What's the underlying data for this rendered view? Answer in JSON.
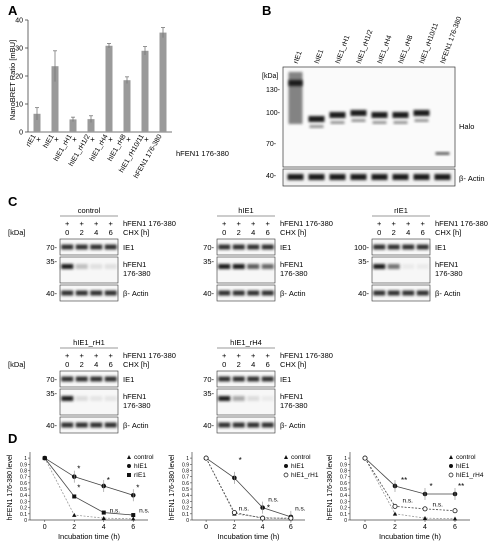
{
  "panels": {
    "A": "A",
    "B": "B",
    "C": "C",
    "D": "D"
  },
  "chart_data": [
    {
      "type": "bar",
      "ylabel": "NanoBRET Ratio [mBU]",
      "ylim": [
        0,
        40
      ],
      "yticks": [
        "0",
        "10",
        "20",
        "30",
        "40"
      ],
      "categories": [
        "rIE1",
        "hIE1",
        "hIE1_rH1",
        "hIE1_rH1/2",
        "hIE1_rH4",
        "hIE1_rH8",
        "hIE1_rH10/11",
        "hFEN1 176-380"
      ],
      "values": [
        6.5,
        23.5,
        4.5,
        4.6,
        30.8,
        18.5,
        29,
        35.5
      ],
      "errors": [
        2.2,
        5.5,
        0.8,
        1.2,
        0.8,
        1.2,
        1.5,
        1.8
      ],
      "plus_signs": [
        "+",
        "+",
        "+",
        "+",
        "+",
        "+",
        "+",
        ""
      ],
      "row_label": "hFEN1 176-380"
    },
    {
      "type": "line",
      "ylabel": "hFEN1 176-380 level",
      "xlabel": "Incubation time (h)",
      "x": [
        0,
        2,
        4,
        6
      ],
      "xlim": [
        -1,
        7
      ],
      "ylim": [
        0,
        1.05
      ],
      "yticks": [
        "0",
        "0.1",
        "0.2",
        "0.3",
        "0.4",
        "0.5",
        "0.6",
        "0.7",
        "0.8",
        "0.9",
        "1"
      ],
      "xticks": [
        "0",
        "2",
        "4",
        "6"
      ],
      "series": [
        {
          "name": "control",
          "values": [
            1,
            0.08,
            0.03,
            0.02
          ],
          "marker": "tri"
        },
        {
          "name": "hIE1",
          "values": [
            1,
            0.7,
            0.55,
            0.4
          ],
          "marker": "circle"
        },
        {
          "name": "rIE1",
          "values": [
            1,
            0.38,
            0.12,
            0.08
          ],
          "marker": "square"
        }
      ],
      "annotations": [
        {
          "text": "*",
          "x": 2.2,
          "y": 0.78
        },
        {
          "text": "*",
          "x": 2.2,
          "y": 0.48
        },
        {
          "text": "*",
          "x": 4.2,
          "y": 0.6
        },
        {
          "text": "*",
          "x": 6.2,
          "y": 0.48
        },
        {
          "text": "n.s.",
          "x": 4.4,
          "y": 0.12
        },
        {
          "text": "n.s.",
          "x": 6.4,
          "y": 0.12
        }
      ]
    },
    {
      "type": "line",
      "ylabel": "hFEN1 176-380 level",
      "xlabel": "Incubation time (h)",
      "x": [
        0,
        2,
        4,
        6
      ],
      "xlim": [
        -1,
        7
      ],
      "ylim": [
        0,
        1.05
      ],
      "yticks": [
        "0",
        "0.1",
        "0.2",
        "0.3",
        "0.4",
        "0.5",
        "0.6",
        "0.7",
        "0.8",
        "0.9",
        "1"
      ],
      "xticks": [
        "0",
        "2",
        "4",
        "6"
      ],
      "series": [
        {
          "name": "control",
          "values": [
            1,
            0.1,
            0.04,
            0.02
          ],
          "marker": "tri"
        },
        {
          "name": "hIE1",
          "values": [
            1,
            0.68,
            0.2,
            0.05
          ],
          "marker": "circle"
        },
        {
          "name": "hIE1_rH1",
          "values": [
            1,
            0.12,
            0.03,
            0.03
          ],
          "marker": "open"
        }
      ],
      "annotations": [
        {
          "text": "*",
          "x": 2.3,
          "y": 0.92
        },
        {
          "text": "n.s.",
          "x": 2.3,
          "y": 0.15
        },
        {
          "text": "n.s.",
          "x": 4.4,
          "y": 0.3
        },
        {
          "text": "*",
          "x": 4.3,
          "y": 0.15
        },
        {
          "text": "n.s.",
          "x": 6.3,
          "y": 0.15
        }
      ]
    },
    {
      "type": "line",
      "ylabel": "hFEN1 176-380 level",
      "xlabel": "Incubation time (h)",
      "x": [
        0,
        2,
        4,
        6
      ],
      "xlim": [
        -1,
        7
      ],
      "ylim": [
        0,
        1.05
      ],
      "yticks": [
        "0",
        "0.1",
        "0.2",
        "0.3",
        "0.4",
        "0.5",
        "0.6",
        "0.7",
        "0.8",
        "0.9",
        "1"
      ],
      "xticks": [
        "0",
        "2",
        "4",
        "6"
      ],
      "series": [
        {
          "name": "control",
          "values": [
            1,
            0.1,
            0.03,
            0.02
          ],
          "marker": "tri"
        },
        {
          "name": "hIE1",
          "values": [
            1,
            0.55,
            0.42,
            0.42
          ],
          "marker": "circle"
        },
        {
          "name": "hIE1_rH4",
          "values": [
            1,
            0.22,
            0.18,
            0.15
          ],
          "marker": "open"
        }
      ],
      "annotations": [
        {
          "text": "**",
          "x": 2.4,
          "y": 0.6
        },
        {
          "text": "n.s.",
          "x": 2.5,
          "y": 0.28
        },
        {
          "text": "*",
          "x": 4.3,
          "y": 0.5
        },
        {
          "text": "n.s.",
          "x": 4.5,
          "y": 0.22
        },
        {
          "text": "**",
          "x": 6.2,
          "y": 0.5
        }
      ]
    }
  ],
  "blotB": {
    "lanes": [
      "rIE1",
      "hIE1",
      "hIE1_rH1",
      "hIE1_rH1/2",
      "hIE1_rH4",
      "hIE1_rH8",
      "hIE1_rH10/11",
      "hFEN1 176-380"
    ],
    "kda": "[kDa]",
    "m130": "130-",
    "m100": "100-",
    "m70": "70-",
    "m40": "40-",
    "halo": "Halo",
    "actin": "β- Actin"
  },
  "blotC": {
    "kda": "[kDa]",
    "plus": "+",
    "row1": "hFEN1 176-380",
    "row2": "CHX [h]",
    "times": [
      "0",
      "2",
      "4",
      "6"
    ],
    "titles": [
      "control",
      "hIE1",
      "rIE1",
      "hIE1_rH1",
      "hIE1_rH4"
    ],
    "ie1": "IE1",
    "fen_a": "hFEN1",
    "fen_b": "176-380",
    "actin": "β- Actin",
    "m70": "70-",
    "m100": "100-",
    "m35": "35-",
    "m40": "40-"
  },
  "colors": {
    "bar": "#9a9a9a",
    "blot": "#1e1e1e",
    "axis": "#444444"
  }
}
